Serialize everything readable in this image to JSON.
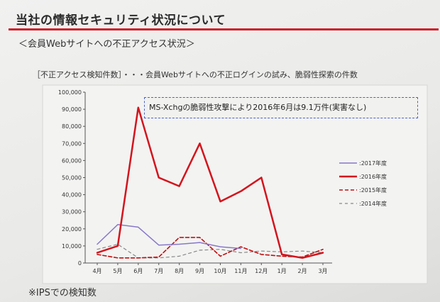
{
  "slide": {
    "title": "当社の情報セキュリティ状況について",
    "subtitle": "＜会員Webサイトへの不正アクセス状況＞",
    "description": "［不正アクセス検知件数］・・・会員Webサイトへの不正ログインの試み、脆弱性探索の件数",
    "annotation": "MS-Xchgの脆弱性攻撃により2016年6月は9.1万件(実害なし)",
    "footnote": "※IPSでの検知数",
    "accent_color": "#d0202a"
  },
  "chart_data": {
    "type": "line",
    "categories": [
      "4月",
      "5月",
      "6月",
      "7月",
      "8月",
      "9月",
      "10月",
      "11月",
      "12月",
      "1月",
      "2月",
      "3月"
    ],
    "ylim": [
      0,
      100000
    ],
    "yticks": [
      "0",
      "10,000",
      "20,000",
      "30,000",
      "40,000",
      "50,000",
      "60,000",
      "70,000",
      "80,000",
      "90,000",
      "100,000"
    ],
    "grid": false,
    "legend_position": "right",
    "series": [
      {
        "name": ":2017年度",
        "color": "#8878c8",
        "style": "solid",
        "width": 1.5,
        "values": [
          11000,
          22500,
          21000,
          10500,
          11000,
          12000,
          9500,
          8500,
          null,
          null,
          null,
          null
        ]
      },
      {
        "name": ":2016年度",
        "color": "#d4141c",
        "style": "solid",
        "width": 2.5,
        "values": [
          6000,
          10000,
          91000,
          50000,
          45000,
          70000,
          36000,
          42000,
          50000,
          5000,
          3000,
          6000
        ]
      },
      {
        "name": ":2015年度",
        "color": "#c01010",
        "style": "dash",
        "width": 1.6,
        "values": [
          5000,
          3000,
          3000,
          3500,
          15000,
          15000,
          4000,
          9500,
          5000,
          4000,
          3500,
          8000
        ]
      },
      {
        "name": ":2014年度",
        "color": "#888888",
        "style": "dash",
        "width": 1.2,
        "values": [
          8000,
          11000,
          3000,
          3000,
          4000,
          7500,
          8000,
          6000,
          7000,
          6500,
          7000,
          6000
        ]
      }
    ]
  }
}
